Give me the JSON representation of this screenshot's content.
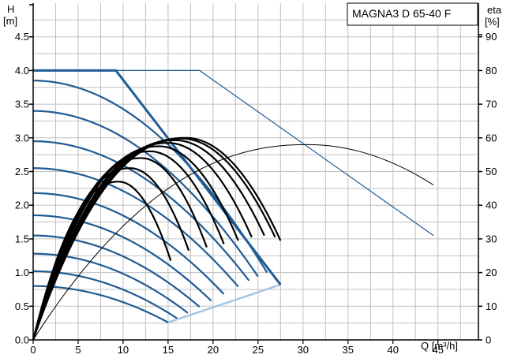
{
  "chart_data": {
    "type": "line",
    "title": "MAGNA3 D 65-40 F",
    "y_left_label_line1": "H",
    "y_left_label_line2": "[m]",
    "y_right_label_line1": "eta",
    "y_right_label_line2": "[%]",
    "xlabel": "Q [m³/h]",
    "xlim": [
      0,
      49.5
    ],
    "ylim_left": [
      0,
      5
    ],
    "ylim_right": [
      0,
      100
    ],
    "x_ticks": [
      "0",
      "5",
      "10",
      "15",
      "20",
      "25",
      "30",
      "35",
      "40",
      "45"
    ],
    "y_left_ticks": [
      "0.0",
      "0.5",
      "1.0",
      "1.5",
      "2.0",
      "2.5",
      "3.0",
      "3.5",
      "4.0",
      "4.5"
    ],
    "y_right_ticks": [
      "0",
      "10",
      "20",
      "30",
      "40",
      "50",
      "60",
      "70",
      "80",
      "90"
    ],
    "grid": true,
    "colors": {
      "head": "#1f5b94",
      "efficiency": "#000000",
      "min_curve": "#a8c4e0",
      "grid": "#c0c0c0"
    },
    "max_curve": {
      "x": [
        0,
        9.2,
        18.5,
        44.5
      ],
      "y": [
        4.0,
        4.0,
        4.0,
        1.55
      ]
    },
    "max_curve_thick": {
      "x": [
        0,
        9.2,
        27.5
      ],
      "y": [
        4.0,
        4.0,
        0.82
      ]
    },
    "min_curve": {
      "x": [
        15,
        27.5
      ],
      "y": [
        0.26,
        0.82
      ]
    },
    "head_curves": [
      {
        "h0": 3.85,
        "q_end": 26.0,
        "h_end": 1.0
      },
      {
        "h0": 3.4,
        "q_end": 25.0,
        "h_end": 0.94
      },
      {
        "h0": 2.95,
        "q_end": 24.0,
        "h_end": 0.88
      },
      {
        "h0": 2.55,
        "q_end": 22.8,
        "h_end": 0.79
      },
      {
        "h0": 2.18,
        "q_end": 21.2,
        "h_end": 0.68
      },
      {
        "h0": 1.85,
        "q_end": 19.8,
        "h_end": 0.58
      },
      {
        "h0": 1.55,
        "q_end": 18.5,
        "h_end": 0.49
      },
      {
        "h0": 1.28,
        "q_end": 17.2,
        "h_end": 0.4
      },
      {
        "h0": 1.02,
        "q_end": 16.0,
        "h_end": 0.32
      },
      {
        "h0": 0.8,
        "q_end": 15.0,
        "h_end": 0.26
      }
    ],
    "eta_curves": [
      {
        "q_peak": 9.5,
        "eta_peak": 47,
        "q_end": 15.3,
        "eta_end": 23.5
      },
      {
        "q_peak": 10.8,
        "eta_peak": 51,
        "q_end": 17.3,
        "eta_end": 26.5
      },
      {
        "q_peak": 12.0,
        "eta_peak": 54,
        "q_end": 19.3,
        "eta_end": 27.5
      },
      {
        "q_peak": 13.0,
        "eta_peak": 56,
        "q_end": 21.2,
        "eta_end": 28.5
      },
      {
        "q_peak": 14.0,
        "eta_peak": 57.5,
        "q_end": 22.8,
        "eta_end": 29.5
      },
      {
        "q_peak": 15.0,
        "eta_peak": 58.5,
        "q_end": 24.3,
        "eta_end": 30.5
      },
      {
        "q_peak": 15.8,
        "eta_peak": 59.3,
        "q_end": 25.7,
        "eta_end": 31
      },
      {
        "q_peak": 16.5,
        "eta_peak": 59.8,
        "q_end": 26.9,
        "eta_end": 30.5
      },
      {
        "q_peak": 17.0,
        "eta_peak": 60,
        "q_end": 27.5,
        "eta_end": 29.5
      }
    ],
    "eta_max_curve": {
      "q_peak": 30.5,
      "eta_peak": 58,
      "q_end": 44.5,
      "eta_end": 46
    }
  }
}
